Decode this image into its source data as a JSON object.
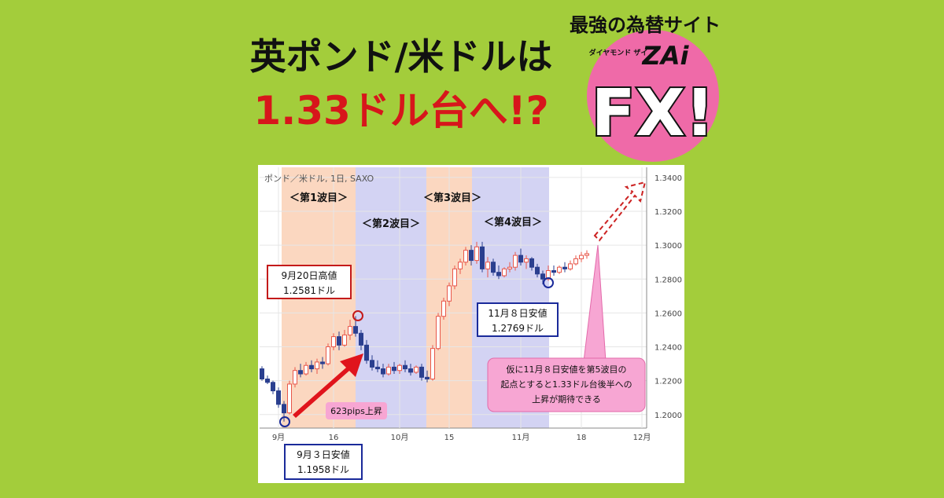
{
  "header": {
    "title_line1": "英ポンド/米ドルは",
    "title_line2": "1.33ドル台へ!?"
  },
  "logo": {
    "tagline": "最強の為替サイト",
    "brand_small": "ダイヤモンド ザイ",
    "brand": "ZAi",
    "fx": "FX!"
  },
  "chart_data": {
    "type": "candlestick",
    "title": "ポンド／米ドル, 1日, SAXO",
    "categories": [
      null,
      null,
      null,
      "9月",
      null,
      null,
      null,
      null,
      null,
      null,
      null,
      null,
      null,
      "16",
      null,
      null,
      null,
      null,
      null,
      null,
      null,
      null,
      null,
      null,
      null,
      "10月",
      null,
      null,
      null,
      null,
      null,
      null,
      null,
      null,
      "15",
      null,
      null,
      null,
      null,
      null,
      null,
      null,
      null,
      null,
      null,
      null,
      null,
      "11月",
      null,
      null,
      null,
      null,
      null,
      null,
      null,
      null,
      null,
      null,
      "18",
      null,
      null,
      null,
      null,
      null,
      null,
      null,
      null,
      null,
      null,
      "12月"
    ],
    "open": [
      1.227,
      1.221,
      1.219,
      1.214,
      1.206,
      1.201,
      1.218,
      1.226,
      1.224,
      1.229,
      1.227,
      1.231,
      1.23,
      1.24,
      1.246,
      1.241,
      1.247,
      1.252,
      1.248,
      1.241,
      1.232,
      1.228,
      1.227,
      1.224,
      1.228,
      1.226,
      1.229,
      1.227,
      1.225,
      1.228,
      1.222,
      1.221,
      1.239,
      1.258,
      1.267,
      1.276,
      1.286,
      1.29,
      1.297,
      1.291,
      1.299,
      1.286,
      1.29,
      1.284,
      1.282,
      1.286,
      1.287,
      1.294,
      1.29,
      1.292,
      1.287,
      1.283,
      1.28,
      1.285,
      1.284,
      1.287,
      1.286,
      1.289,
      1.292,
      1.294,
      null,
      null,
      null,
      null,
      null,
      null,
      null,
      null,
      null,
      null
    ],
    "high": [
      1.2285,
      1.223,
      1.22,
      1.216,
      1.208,
      1.22,
      1.228,
      1.23,
      1.231,
      1.232,
      1.233,
      1.234,
      1.242,
      1.248,
      1.249,
      1.25,
      1.256,
      1.2581,
      1.25,
      1.244,
      1.235,
      1.232,
      1.23,
      1.23,
      1.231,
      1.23,
      1.232,
      1.23,
      1.229,
      1.23,
      1.226,
      1.241,
      1.26,
      1.269,
      1.278,
      1.288,
      1.292,
      1.299,
      1.3,
      1.302,
      1.302,
      1.293,
      1.292,
      1.288,
      1.287,
      1.29,
      1.296,
      1.298,
      1.294,
      1.293,
      1.289,
      1.285,
      1.288,
      1.288,
      1.288,
      1.29,
      1.291,
      1.294,
      1.296,
      1.297,
      null,
      null,
      null,
      null,
      null,
      null,
      null,
      null,
      null,
      null
    ],
    "low": [
      1.22,
      1.218,
      1.212,
      1.204,
      1.1958,
      1.2,
      1.216,
      1.222,
      1.223,
      1.225,
      1.224,
      1.227,
      1.229,
      1.238,
      1.238,
      1.24,
      1.244,
      1.246,
      1.238,
      1.23,
      1.226,
      1.225,
      1.222,
      1.223,
      1.224,
      1.224,
      1.225,
      1.223,
      1.224,
      1.22,
      1.219,
      1.22,
      1.238,
      1.256,
      1.264,
      1.274,
      1.283,
      1.288,
      1.288,
      1.289,
      1.284,
      1.281,
      1.282,
      1.28,
      1.281,
      1.284,
      1.285,
      1.288,
      1.286,
      1.285,
      1.281,
      1.2769,
      1.279,
      1.282,
      1.283,
      1.284,
      1.285,
      1.288,
      1.29,
      1.292,
      null,
      null,
      null,
      null,
      null,
      null,
      null,
      null,
      null,
      null
    ],
    "close": [
      1.221,
      1.219,
      1.214,
      1.206,
      1.201,
      1.218,
      1.226,
      1.224,
      1.229,
      1.227,
      1.231,
      1.23,
      1.24,
      1.246,
      1.241,
      1.247,
      1.252,
      1.248,
      1.241,
      1.232,
      1.228,
      1.227,
      1.224,
      1.228,
      1.226,
      1.229,
      1.227,
      1.225,
      1.228,
      1.222,
      1.221,
      1.239,
      1.258,
      1.267,
      1.276,
      1.286,
      1.29,
      1.297,
      1.291,
      1.299,
      1.286,
      1.29,
      1.284,
      1.282,
      1.286,
      1.287,
      1.294,
      1.29,
      1.292,
      1.287,
      1.283,
      1.28,
      1.285,
      1.284,
      1.287,
      1.286,
      1.289,
      1.292,
      1.294,
      1.295,
      null,
      null,
      null,
      null,
      null,
      null,
      null,
      null,
      null,
      null
    ],
    "up_color": "#e8574a",
    "down_color": "#2a3f8f",
    "ylim": [
      1.192,
      1.346
    ],
    "yticks": [
      {
        "value": 1.2,
        "label": "1.2000"
      },
      {
        "value": 1.22,
        "label": "1.2200"
      },
      {
        "value": 1.24,
        "label": "1.2400"
      },
      {
        "value": 1.26,
        "label": "1.2600"
      },
      {
        "value": 1.28,
        "label": "1.2800"
      },
      {
        "value": 1.3,
        "label": "1.3000"
      },
      {
        "value": 1.32,
        "label": "1.3200"
      },
      {
        "value": 1.34,
        "label": "1.3400"
      }
    ],
    "grid": true,
    "waves": [
      "＜第1波目＞",
      "＜第2波目＞",
      "＜第3波目＞",
      "＜第4波目＞"
    ],
    "annotations": {
      "high_sep20": [
        "9月20日高値",
        "1.2581ドル"
      ],
      "low_nov8": [
        "11月８日安値",
        "1.2769ドル"
      ],
      "low_sep3": [
        "9月３日安値",
        "1.1958ドル"
      ],
      "rise": "623pips上昇",
      "forecast": [
        "仮に11月８日安値を第5波目の",
        "起点とすると1.33ドル台後半への",
        "上昇が期待できる"
      ]
    }
  }
}
